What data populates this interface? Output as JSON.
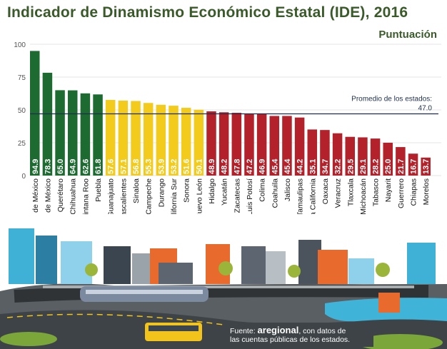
{
  "title": "Indicador de Dinamismo Económico Estatal (IDE), 2016",
  "subtitle": "Puntuación",
  "chart_data": {
    "type": "bar",
    "title": "Indicador de Dinamismo Económico Estatal (IDE), 2016",
    "ylabel": "Puntuación",
    "ylim": [
      0,
      100
    ],
    "yticks": [
      0,
      25,
      50,
      75,
      100
    ],
    "reference_line": {
      "label": "Promedio de los estados:",
      "value": 47.0,
      "value_label": "47.0"
    },
    "categories": [
      "Ciudad de México",
      "Estado de México",
      "Querétaro",
      "Chihuahua",
      "Quintana Roo",
      "Puebla",
      "Guanajuato",
      "Aguascalientes",
      "Sinaloa",
      "Campeche",
      "Durango",
      "Baja California Sur",
      "Sonora",
      "Nuevo León",
      "Hidalgo",
      "Yucatán",
      "Zacatecas",
      "San Luis Potosí",
      "Colima",
      "Coahuila",
      "Jalisco",
      "Tamaulipas",
      "Baja California",
      "Oaxaca",
      "Veracruz",
      "Tlaxcala",
      "Michoacán",
      "Tabasco",
      "Nayarit",
      "Guerrero",
      "Chiapas",
      "Morelos"
    ],
    "values": [
      94.9,
      78.3,
      65.0,
      64.9,
      62.6,
      61.8,
      57.6,
      57.1,
      56.8,
      55.3,
      53.9,
      53.2,
      51.6,
      50.1,
      48.9,
      48.2,
      47.8,
      47.2,
      46.9,
      45.4,
      45.4,
      44.2,
      35.1,
      34.7,
      32.2,
      29.5,
      29.1,
      28.2,
      25.0,
      21.7,
      16.7,
      13.7
    ],
    "value_labels": [
      "94.9",
      "78.3",
      "65.0",
      "64.9",
      "62.6",
      "61.8",
      "57.6",
      "57.1",
      "56.8",
      "55.3",
      "53.9",
      "53.2",
      "51.6",
      "50.1",
      "48.9",
      "48.2",
      "47.8",
      "47.2",
      "46.9",
      "45.4",
      "45.4",
      "44.2",
      "35.1",
      "34.7",
      "32.2",
      "29.5",
      "29.1",
      "28.2",
      "25.0",
      "21.7",
      "16.7",
      "13.7"
    ],
    "groups": [
      0,
      0,
      0,
      0,
      0,
      0,
      1,
      1,
      1,
      1,
      1,
      1,
      1,
      1,
      2,
      2,
      2,
      2,
      2,
      2,
      2,
      2,
      2,
      2,
      2,
      2,
      2,
      2,
      2,
      2,
      2,
      2
    ],
    "group_colors": [
      "#1e6b32",
      "#f2cb1d",
      "#b3222b"
    ]
  },
  "footer": {
    "prefix": "Fuente: ",
    "brand": "aregional",
    "line1_suffix": ", con datos de",
    "line2": "las cuentas públicas de los estados."
  }
}
